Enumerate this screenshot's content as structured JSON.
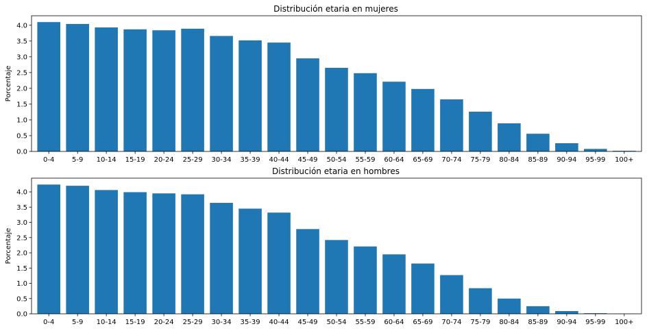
{
  "colors": {
    "bar": "#1f77b4",
    "axis": "#000000",
    "background": "#ffffff"
  },
  "chart_data": [
    {
      "type": "bar",
      "title": "Distribución etaria en mujeres",
      "xlabel": "",
      "ylabel": "Porcentaje",
      "ylim": [
        0,
        4.3
      ],
      "yticks": [
        "0.0",
        "0.5",
        "1.0",
        "1.5",
        "2.0",
        "2.5",
        "3.0",
        "3.5",
        "4.0"
      ],
      "grid": false,
      "categories": [
        "0-4",
        "5-9",
        "10-14",
        "15-19",
        "20-24",
        "25-29",
        "30-34",
        "35-39",
        "40-44",
        "45-49",
        "50-54",
        "55-59",
        "60-64",
        "65-69",
        "70-74",
        "75-79",
        "80-84",
        "85-89",
        "90-94",
        "95-99",
        "100+"
      ],
      "values": [
        4.1,
        4.04,
        3.93,
        3.87,
        3.84,
        3.89,
        3.66,
        3.52,
        3.45,
        2.95,
        2.65,
        2.48,
        2.21,
        1.98,
        1.65,
        1.26,
        0.89,
        0.56,
        0.26,
        0.08,
        0.02
      ]
    },
    {
      "type": "bar",
      "title": "Distribución etaria en hombres",
      "xlabel": "",
      "ylabel": "Porcentaje",
      "ylim": [
        0,
        4.45
      ],
      "yticks": [
        "0.0",
        "0.5",
        "1.0",
        "1.5",
        "2.0",
        "2.5",
        "3.0",
        "3.5",
        "4.0"
      ],
      "grid": false,
      "categories": [
        "0-4",
        "5-9",
        "10-14",
        "15-19",
        "20-24",
        "25-29",
        "30-34",
        "35-39",
        "40-44",
        "45-49",
        "50-54",
        "55-59",
        "60-64",
        "65-69",
        "70-74",
        "75-79",
        "80-84",
        "85-89",
        "90-94",
        "95-99",
        "100+"
      ],
      "values": [
        4.24,
        4.2,
        4.06,
        3.99,
        3.95,
        3.92,
        3.64,
        3.45,
        3.32,
        2.78,
        2.42,
        2.21,
        1.95,
        1.65,
        1.27,
        0.84,
        0.5,
        0.25,
        0.09,
        0.02,
        0.005
      ]
    }
  ]
}
